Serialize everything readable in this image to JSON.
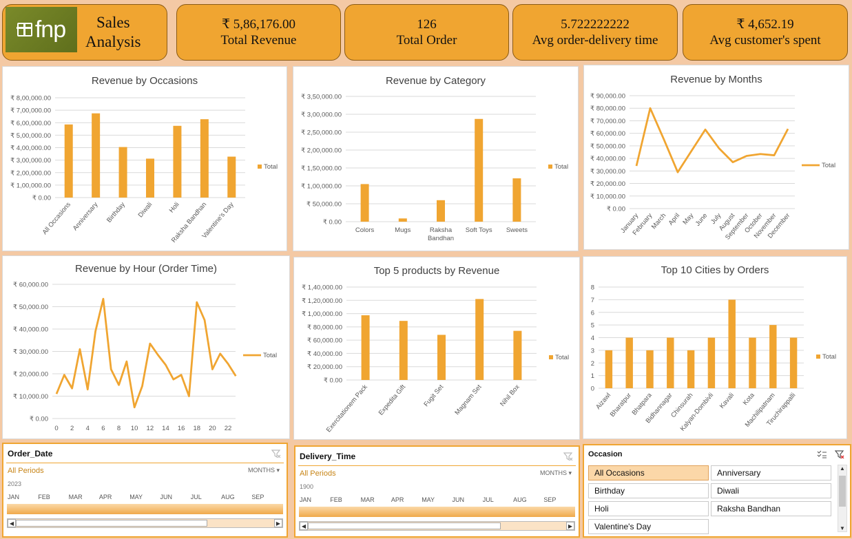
{
  "header": {
    "logo_text": "fnp",
    "title_line1": "Sales",
    "title_line2": "Analysis",
    "kpis": [
      {
        "value": "₹ 5,86,176.00",
        "label": "Total Revenue"
      },
      {
        "value": "126",
        "label": "Total Order"
      },
      {
        "value": "5.722222222",
        "label": "Avg order-delivery time"
      },
      {
        "value": "₹ 4,652.19",
        "label": "Avg customer's spent"
      }
    ]
  },
  "colors": {
    "accent": "#f0a531",
    "background": "#f4c9a4",
    "border": "#8a5a14"
  },
  "chart_data": [
    {
      "id": "occasions",
      "type": "bar",
      "title": "Revenue by Occasions",
      "categories": [
        "All Occasions",
        "Anniversary",
        "Birthday",
        "Diwali",
        "Holi",
        "Raksha Bandhan",
        "Valentine's Day"
      ],
      "series": [
        {
          "name": "Total",
          "values": [
            586000,
            675000,
            405000,
            312000,
            575000,
            628000,
            328000
          ]
        }
      ],
      "yticks": [
        "₹ 0.00",
        "₹ 1,00,000.00",
        "₹ 2,00,000.00",
        "₹ 3,00,000.00",
        "₹ 4,00,000.00",
        "₹ 5,00,000.00",
        "₹ 6,00,000.00",
        "₹ 7,00,000.00",
        "₹ 8,00,000.00"
      ],
      "ylim": [
        0,
        800000
      ],
      "legend": "right"
    },
    {
      "id": "category",
      "type": "bar",
      "title": "Revenue by Category",
      "categories": [
        "Colors",
        "Mugs",
        "Raksha Bandhan",
        "Soft Toys",
        "Sweets"
      ],
      "series": [
        {
          "name": "Total",
          "values": [
            105000,
            9000,
            60000,
            287000,
            121000
          ]
        }
      ],
      "yticks": [
        "₹ 0.00",
        "₹ 50,000.00",
        "₹ 1,00,000.00",
        "₹ 1,50,000.00",
        "₹ 2,00,000.00",
        "₹ 2,50,000.00",
        "₹ 3,00,000.00",
        "₹ 3,50,000.00"
      ],
      "ylim": [
        0,
        350000
      ],
      "legend": "right"
    },
    {
      "id": "months",
      "type": "line",
      "title": "Revenue by Months",
      "categories": [
        "January",
        "February",
        "March",
        "April",
        "May",
        "June",
        "July",
        "August",
        "September",
        "October",
        "November",
        "December"
      ],
      "series": [
        {
          "name": "Total",
          "values": [
            34000,
            80000,
            55000,
            29000,
            46000,
            63000,
            48000,
            37000,
            42000,
            43500,
            42500,
            63500
          ]
        }
      ],
      "yticks": [
        "₹ 0.00",
        "₹ 10,000.00",
        "₹ 20,000.00",
        "₹ 30,000.00",
        "₹ 40,000.00",
        "₹ 50,000.00",
        "₹ 60,000.00",
        "₹ 70,000.00",
        "₹ 80,000.00",
        "₹ 90,000.00"
      ],
      "ylim": [
        0,
        90000
      ],
      "legend": "right"
    },
    {
      "id": "hour",
      "type": "line",
      "title": "Revenue by Hour (Order Time)",
      "x": [
        0,
        1,
        2,
        3,
        4,
        5,
        6,
        7,
        8,
        9,
        10,
        11,
        12,
        13,
        14,
        15,
        16,
        17,
        18,
        19,
        20,
        21,
        22,
        23
      ],
      "xticks": [
        "0",
        "2",
        "4",
        "6",
        "8",
        "10",
        "12",
        "14",
        "16",
        "18",
        "20",
        "22"
      ],
      "series": [
        {
          "name": "Total",
          "values": [
            11000,
            19500,
            13500,
            31000,
            13000,
            39000,
            53500,
            22000,
            15000,
            25500,
            5000,
            14500,
            33500,
            28500,
            24000,
            17500,
            19500,
            10000,
            52000,
            44000,
            22000,
            29000,
            24500,
            19000
          ]
        }
      ],
      "yticks": [
        "₹ 0.00",
        "₹ 10,000.00",
        "₹ 20,000.00",
        "₹ 30,000.00",
        "₹ 40,000.00",
        "₹ 50,000.00",
        "₹ 60,000.00"
      ],
      "ylim": [
        0,
        60000
      ],
      "legend": "right"
    },
    {
      "id": "products",
      "type": "bar",
      "title": "Top 5 products by Revenue",
      "categories": [
        "Exercitationem Pack",
        "Expedita Gift",
        "Fugit Set",
        "Magnam Set",
        "Nihil Box"
      ],
      "series": [
        {
          "name": "Total",
          "values": [
            97500,
            89000,
            68000,
            122000,
            74000
          ]
        }
      ],
      "yticks": [
        "₹ 0.00",
        "₹ 20,000.00",
        "₹ 40,000.00",
        "₹ 60,000.00",
        "₹ 80,000.00",
        "₹ 1,00,000.00",
        "₹ 1,20,000.00",
        "₹ 1,40,000.00"
      ],
      "ylim": [
        0,
        140000
      ],
      "legend": "right"
    },
    {
      "id": "cities",
      "type": "bar",
      "title": "Top 10 Cities by Orders",
      "categories": [
        "Aizawl",
        "Bharatpur",
        "Bhatpara",
        "Bidhannagar",
        "Chinsurah",
        "Kalyan-Dombivli",
        "Kavali",
        "Kota",
        "Machilipatnam",
        "Tiruchirappalli"
      ],
      "series": [
        {
          "name": "Total",
          "values": [
            3,
            4,
            3,
            4,
            3,
            4,
            7,
            4,
            5,
            4
          ]
        }
      ],
      "yticks": [
        "0",
        "1",
        "2",
        "3",
        "4",
        "5",
        "6",
        "7",
        "8"
      ],
      "ylim": [
        0,
        8
      ],
      "legend": "right"
    }
  ],
  "slicers": {
    "order_date": {
      "title": "Order_Date",
      "periods": "All Periods",
      "unit": "MONTHS",
      "year": "2023",
      "months": [
        "JAN",
        "FEB",
        "MAR",
        "APR",
        "MAY",
        "JUN",
        "JUL",
        "AUG",
        "SEP"
      ]
    },
    "delivery_time": {
      "title": "Delivery_Time",
      "periods": "All Periods",
      "unit": "MONTHS",
      "year": "1900",
      "months": [
        "JAN",
        "FEB",
        "MAR",
        "APR",
        "MAY",
        "JUN",
        "JUL",
        "AUG",
        "SEP"
      ]
    },
    "occasion": {
      "title": "Occasion",
      "items": [
        "All Occasions",
        "Anniversary",
        "Birthday",
        "Diwali",
        "Holi",
        "Raksha Bandhan",
        "Valentine's Day"
      ],
      "selected": "All Occasions"
    }
  }
}
